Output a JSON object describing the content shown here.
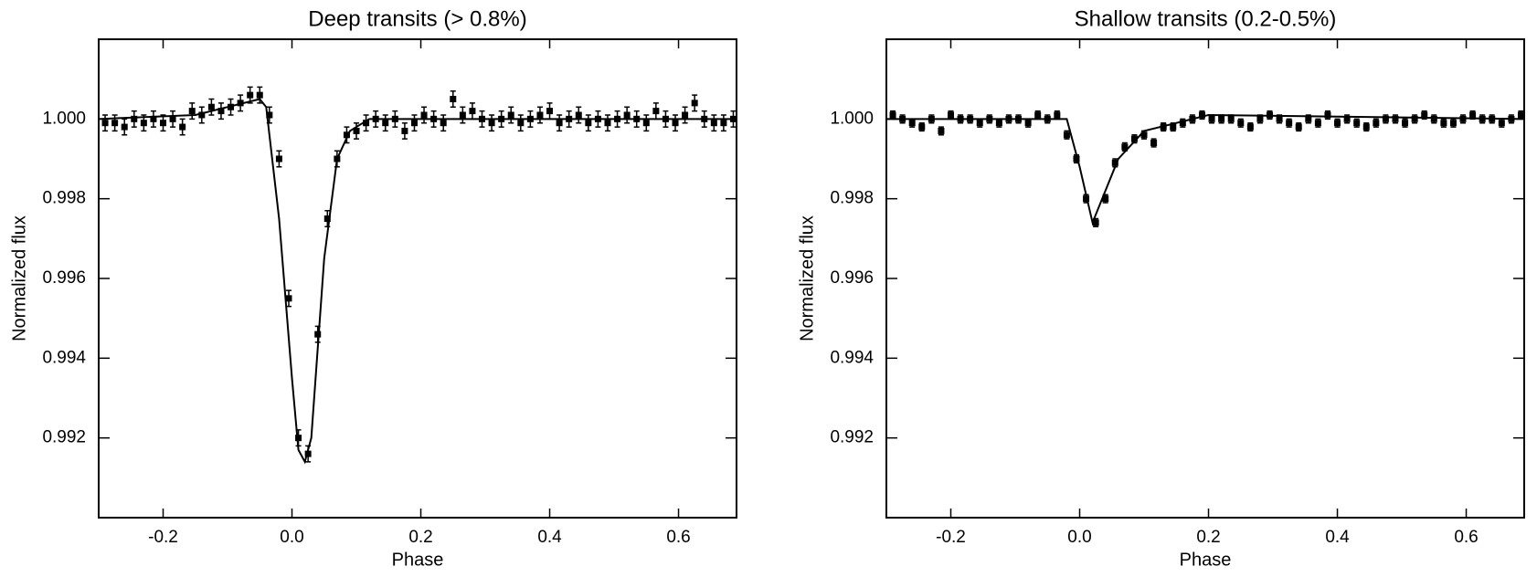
{
  "chart_data": [
    {
      "type": "errorbar",
      "title": "Deep transits (> 0.8%)",
      "xlabel": "Phase",
      "ylabel": "Normalized flux",
      "color": "#000000",
      "xlim": [
        -0.3,
        0.69
      ],
      "ylim": [
        0.99,
        1.002
      ],
      "xticks": [
        -0.2,
        {
          "value": 0,
          "label": "0.0"
        },
        0.2,
        0.4,
        0.6
      ],
      "yticks": [
        0.992,
        0.994,
        0.996,
        0.998,
        {
          "value": 1.0,
          "label": "1.000"
        }
      ],
      "points": {
        "x": [
          -0.29,
          -0.275,
          -0.26,
          -0.245,
          -0.23,
          -0.215,
          -0.2,
          -0.185,
          -0.17,
          -0.155,
          -0.14,
          -0.125,
          -0.11,
          -0.095,
          -0.08,
          -0.065,
          -0.05,
          -0.035,
          -0.02,
          -0.005,
          0.01,
          0.025,
          0.04,
          0.055,
          0.07,
          0.085,
          0.1,
          0.115,
          0.13,
          0.145,
          0.16,
          0.175,
          0.19,
          0.205,
          0.22,
          0.235,
          0.25,
          0.265,
          0.28,
          0.295,
          0.31,
          0.325,
          0.34,
          0.355,
          0.37,
          0.385,
          0.4,
          0.415,
          0.43,
          0.445,
          0.46,
          0.475,
          0.49,
          0.505,
          0.52,
          0.535,
          0.55,
          0.565,
          0.58,
          0.595,
          0.61,
          0.625,
          0.64,
          0.655,
          0.67,
          0.685
        ],
        "values": [
          0.9999,
          0.9999,
          0.9998,
          1.0,
          0.9999,
          1.0,
          0.9999,
          1.0,
          0.9998,
          1.0002,
          1.0001,
          1.0003,
          1.0002,
          1.0003,
          1.0004,
          1.0006,
          1.0006,
          1.0001,
          0.999,
          0.9955,
          0.992,
          0.9916,
          0.9946,
          0.9975,
          0.999,
          0.9996,
          0.9997,
          0.9999,
          1.0,
          0.9999,
          1.0,
          0.9997,
          0.9999,
          1.0001,
          1.0,
          0.9999,
          1.0005,
          1.0001,
          1.0002,
          1.0,
          0.9999,
          1.0,
          1.0001,
          0.9999,
          1.0,
          1.0001,
          1.0002,
          0.9999,
          1.0,
          1.0001,
          0.9999,
          1.0,
          0.9999,
          1.0,
          1.0001,
          1.0,
          0.9999,
          1.0002,
          1.0,
          0.9999,
          1.0001,
          1.0004,
          1.0,
          0.9999,
          0.9999,
          1.0
        ],
        "errors": [
          0.0002,
          0.0002,
          0.0002,
          0.0002,
          0.0002,
          0.0002,
          0.0002,
          0.0002,
          0.0002,
          0.0002,
          0.0002,
          0.0002,
          0.0002,
          0.0002,
          0.0002,
          0.0002,
          0.0002,
          0.0002,
          0.0002,
          0.0002,
          0.0002,
          0.0002,
          0.0002,
          0.0002,
          0.0002,
          0.0002,
          0.0002,
          0.0002,
          0.0002,
          0.0002,
          0.0002,
          0.0002,
          0.0002,
          0.0002,
          0.0002,
          0.0002,
          0.0002,
          0.0002,
          0.0002,
          0.0002,
          0.0002,
          0.0002,
          0.0002,
          0.0002,
          0.0002,
          0.0002,
          0.0002,
          0.0002,
          0.0002,
          0.0002,
          0.0002,
          0.0002,
          0.0002,
          0.0002,
          0.0002,
          0.0002,
          0.0002,
          0.0002,
          0.0002,
          0.0002,
          0.0002,
          0.0002,
          0.0002,
          0.0002,
          0.0002,
          0.0002
        ]
      },
      "model": {
        "x": [
          -0.3,
          -0.15,
          -0.05,
          -0.04,
          -0.02,
          0.0,
          0.01,
          0.02,
          0.03,
          0.05,
          0.07,
          0.09,
          0.12,
          0.69
        ],
        "values": [
          1.0,
          1.0001,
          1.0005,
          1.0003,
          0.9975,
          0.9935,
          0.9917,
          0.9914,
          0.992,
          0.9965,
          0.999,
          0.9997,
          1.0,
          1.0
        ]
      }
    },
    {
      "type": "errorbar",
      "title": "Shallow transits (0.2-0.5%)",
      "xlabel": "Phase",
      "ylabel": "Normalized flux",
      "color": "#000000",
      "xlim": [
        -0.3,
        0.69
      ],
      "ylim": [
        0.99,
        1.002
      ],
      "xticks": [
        -0.2,
        {
          "value": 0,
          "label": "0.0"
        },
        0.2,
        0.4,
        0.6
      ],
      "yticks": [
        0.992,
        0.994,
        0.996,
        0.998,
        {
          "value": 1.0,
          "label": "1.000"
        }
      ],
      "points": {
        "x": [
          -0.29,
          -0.275,
          -0.26,
          -0.245,
          -0.23,
          -0.215,
          -0.2,
          -0.185,
          -0.17,
          -0.155,
          -0.14,
          -0.125,
          -0.11,
          -0.095,
          -0.08,
          -0.065,
          -0.05,
          -0.035,
          -0.02,
          -0.005,
          0.01,
          0.025,
          0.04,
          0.055,
          0.07,
          0.085,
          0.1,
          0.115,
          0.13,
          0.145,
          0.16,
          0.175,
          0.19,
          0.205,
          0.22,
          0.235,
          0.25,
          0.265,
          0.28,
          0.295,
          0.31,
          0.325,
          0.34,
          0.355,
          0.37,
          0.385,
          0.4,
          0.415,
          0.43,
          0.445,
          0.46,
          0.475,
          0.49,
          0.505,
          0.52,
          0.535,
          0.55,
          0.565,
          0.58,
          0.595,
          0.61,
          0.625,
          0.64,
          0.655,
          0.67,
          0.685
        ],
        "values": [
          1.0001,
          1.0,
          0.9999,
          0.9998,
          1.0,
          0.9997,
          1.0001,
          1.0,
          1.0,
          0.9999,
          1.0,
          0.9999,
          1.0,
          1.0,
          0.9999,
          1.0001,
          1.0,
          1.0001,
          0.9996,
          0.999,
          0.998,
          0.9974,
          0.998,
          0.9989,
          0.9993,
          0.9995,
          0.9996,
          0.9994,
          0.9998,
          0.9998,
          0.9999,
          1.0,
          1.0001,
          1.0,
          1.0,
          1.0,
          0.9999,
          0.9998,
          1.0,
          1.0001,
          1.0,
          0.9999,
          0.9998,
          1.0,
          0.9999,
          1.0001,
          0.9999,
          1.0,
          0.9999,
          0.9998,
          0.9999,
          1.0,
          1.0,
          0.9999,
          1.0,
          1.0001,
          1.0,
          0.9999,
          0.9999,
          1.0,
          1.0001,
          1.0,
          1.0,
          0.9999,
          1.0,
          1.0001
        ],
        "errors": [
          0.0001,
          0.0001,
          0.0001,
          0.0001,
          0.0001,
          0.0001,
          0.0001,
          0.0001,
          0.0001,
          0.0001,
          0.0001,
          0.0001,
          0.0001,
          0.0001,
          0.0001,
          0.0001,
          0.0001,
          0.0001,
          0.0001,
          0.0001,
          0.0001,
          0.0001,
          0.0001,
          0.0001,
          0.0001,
          0.0001,
          0.0001,
          0.0001,
          0.0001,
          0.0001,
          0.0001,
          0.0001,
          0.0001,
          0.0001,
          0.0001,
          0.0001,
          0.0001,
          0.0001,
          0.0001,
          0.0001,
          0.0001,
          0.0001,
          0.0001,
          0.0001,
          0.0001,
          0.0001,
          0.0001,
          0.0001,
          0.0001,
          0.0001,
          0.0001,
          0.0001,
          0.0001,
          0.0001,
          0.0001,
          0.0001,
          0.0001,
          0.0001,
          0.0001,
          0.0001,
          0.0001,
          0.0001,
          0.0001,
          0.0001,
          0.0001,
          0.0001
        ]
      },
      "model": {
        "x": [
          -0.3,
          -0.02,
          0.0,
          0.02,
          0.04,
          0.06,
          0.1,
          0.2,
          0.69
        ],
        "values": [
          1.0,
          1.0,
          0.9988,
          0.9974,
          0.9982,
          0.999,
          0.9997,
          1.0001,
          1.0
        ]
      }
    }
  ]
}
